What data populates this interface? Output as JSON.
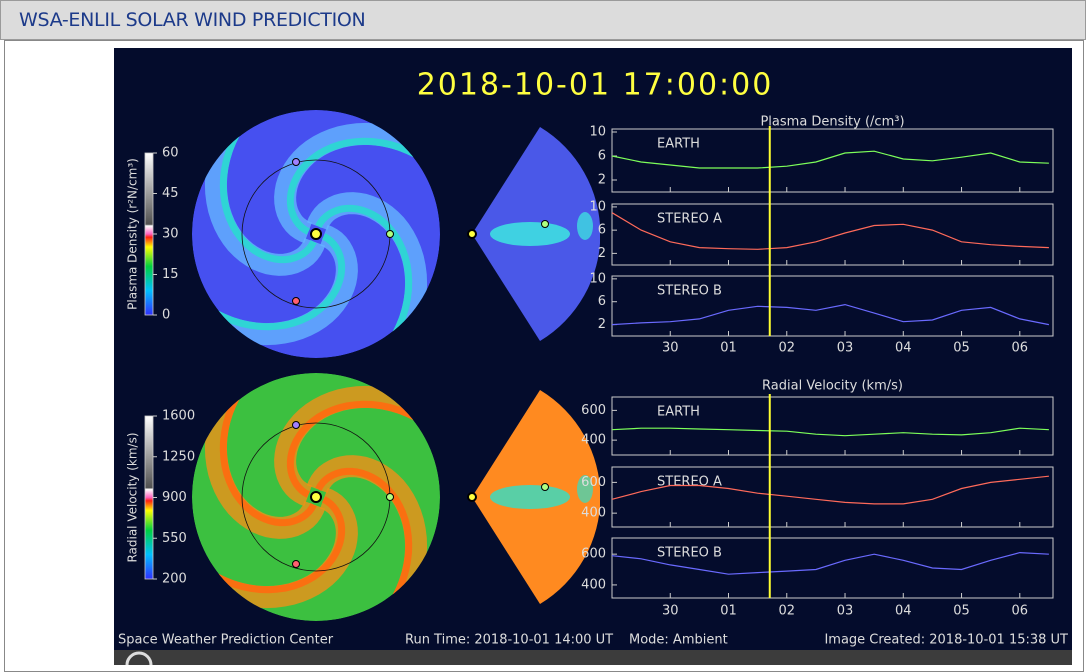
{
  "header": {
    "title": "WSA-ENLIL SOLAR WIND PREDICTION"
  },
  "timestamp": "2018-10-01 17:00:00",
  "colorbars": [
    {
      "label": "Plasma Density (r²N/cm³)",
      "ticks": [
        0,
        15,
        30,
        45,
        60
      ],
      "lim": [
        0,
        60
      ]
    },
    {
      "label": "Radial Velocity (km/s)",
      "ticks": [
        200,
        550,
        900,
        1250,
        1600
      ],
      "lim": [
        200,
        1600
      ]
    }
  ],
  "footer": {
    "left": "Space Weather Prediction Center",
    "run_time": "Run Time: 2018-10-01 14:00 UT",
    "mode": "Mode: Ambient",
    "created": "Image Created: 2018-10-01 15:38 UT"
  },
  "chart_data": [
    {
      "type": "line",
      "title": "Plasma Density (/cm³)",
      "x": [
        -1,
        -0.5,
        0,
        0.5,
        1,
        1.5,
        2,
        2.5,
        3,
        3.5,
        4,
        4.5,
        5,
        5.5,
        6,
        6.5
      ],
      "xlim": [
        -1,
        6.57
      ],
      "current_x": 1.708,
      "xticks": [
        {
          "value": 0,
          "label": "30"
        },
        {
          "value": 1,
          "label": "01"
        },
        {
          "value": 2,
          "label": "02"
        },
        {
          "value": 3,
          "label": "03"
        },
        {
          "value": 4,
          "label": "04"
        },
        {
          "value": 5,
          "label": "05"
        },
        {
          "value": 6,
          "label": "06"
        }
      ],
      "panels": [
        {
          "ylim": [
            0,
            10.5
          ],
          "yticks": [
            2,
            6,
            10
          ],
          "series": [
            {
              "name": "EARTH",
              "color": "#7dff5a",
              "values": [
                6,
                5,
                4.5,
                4,
                4,
                4,
                4.3,
                5,
                6.5,
                6.8,
                5.5,
                5.2,
                5.8,
                6.5,
                5,
                4.8
              ]
            }
          ]
        },
        {
          "ylim": [
            0,
            10.5
          ],
          "yticks": [
            2,
            6,
            10
          ],
          "series": [
            {
              "name": "STEREO A",
              "color": "#ff6a5a",
              "values": [
                9,
                6,
                4,
                3,
                2.8,
                2.7,
                3,
                4,
                5.5,
                6.8,
                7,
                6,
                4,
                3.5,
                3.2,
                3
              ]
            }
          ]
        },
        {
          "ylim": [
            0,
            10.5
          ],
          "yticks": [
            2,
            6,
            10
          ],
          "series": [
            {
              "name": "STEREO B",
              "color": "#6a6aff",
              "values": [
                2,
                2.3,
                2.5,
                3,
                4.5,
                5.2,
                5,
                4.5,
                5.5,
                4,
                2.5,
                2.8,
                4.5,
                5,
                3,
                2
              ]
            }
          ]
        }
      ]
    },
    {
      "type": "line",
      "title": "Radial Velocity (km/s)",
      "x": [
        -1,
        -0.5,
        0,
        0.5,
        1,
        1.5,
        2,
        2.5,
        3,
        3.5,
        4,
        4.5,
        5,
        5.5,
        6,
        6.5
      ],
      "xlim": [
        -1,
        6.57
      ],
      "current_x": 1.708,
      "xticks": [
        {
          "value": 0,
          "label": "30"
        },
        {
          "value": 1,
          "label": "01"
        },
        {
          "value": 2,
          "label": "02"
        },
        {
          "value": 3,
          "label": "03"
        },
        {
          "value": 4,
          "label": "04"
        },
        {
          "value": 5,
          "label": "05"
        },
        {
          "value": 6,
          "label": "06"
        }
      ],
      "panels": [
        {
          "ylim": [
            300,
            690
          ],
          "yticks": [
            400,
            600
          ],
          "series": [
            {
              "name": "EARTH",
              "color": "#7dff5a",
              "values": [
                470,
                480,
                480,
                475,
                470,
                465,
                460,
                440,
                430,
                440,
                450,
                440,
                435,
                450,
                480,
                470
              ]
            }
          ]
        },
        {
          "ylim": [
            310,
            700
          ],
          "yticks": [
            400,
            600
          ],
          "series": [
            {
              "name": "STEREO A",
              "color": "#ff6a5a",
              "values": [
                490,
                540,
                580,
                580,
                560,
                530,
                510,
                490,
                470,
                460,
                460,
                490,
                560,
                600,
                620,
                640
              ]
            }
          ]
        },
        {
          "ylim": [
            315,
            705
          ],
          "yticks": [
            400,
            600
          ],
          "series": [
            {
              "name": "STEREO B",
              "color": "#6a6aff",
              "values": [
                590,
                570,
                530,
                500,
                470,
                480,
                490,
                500,
                560,
                600,
                560,
                510,
                500,
                560,
                610,
                600
              ]
            }
          ]
        }
      ]
    }
  ]
}
